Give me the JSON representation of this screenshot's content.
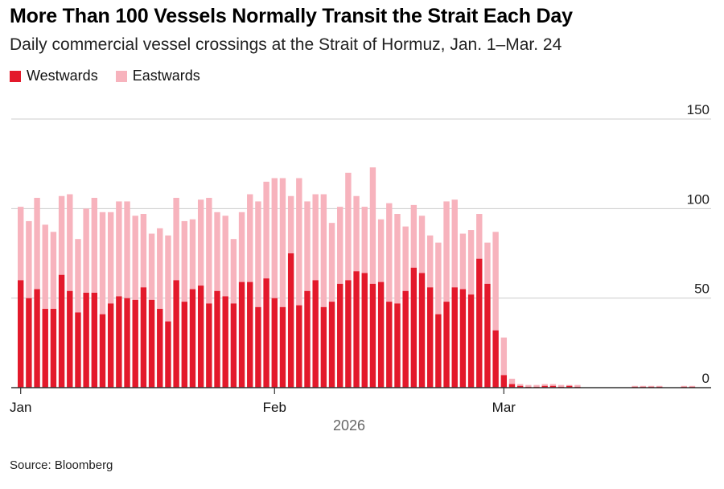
{
  "title": "More Than 100 Vessels Normally Transit the Strait Each Day",
  "subtitle": "Daily commercial vessel crossings at the Strait of Hormuz, Jan. 1–Mar. 24",
  "source": "Source: Bloomberg",
  "colors": {
    "westwards": "#e3192b",
    "eastwards": "#f7b3bd",
    "grid": "#cccccc",
    "axis": "#333333"
  },
  "chart_data": {
    "type": "bar",
    "stacked": true,
    "title": "More Than 100 Vessels Normally Transit the Strait Each Day",
    "subtitle": "Daily commercial vessel crossings at the Strait of Hormuz, Jan. 1–Mar. 24",
    "xlabel": "2026",
    "ylabel": "",
    "ylim": [
      0,
      150
    ],
    "yticks": [
      0,
      50,
      100,
      150
    ],
    "ytick_labels": [
      "0",
      "50",
      "100",
      "150"
    ],
    "y_axis_position": "right",
    "grid": true,
    "legend_position": "top-left",
    "x_ticks": [
      {
        "label": "Jan",
        "day_index": 0
      },
      {
        "label": "Feb",
        "day_index": 31
      },
      {
        "label": "Mar",
        "day_index": 59
      }
    ],
    "series": [
      {
        "name": "Westwards",
        "values": [
          60,
          50,
          55,
          44,
          44,
          63,
          54,
          42,
          53,
          53,
          41,
          47,
          51,
          50,
          49,
          56,
          49,
          44,
          37,
          60,
          48,
          55,
          57,
          47,
          54,
          51,
          47,
          59,
          59,
          45,
          61,
          50,
          45,
          75,
          46,
          54,
          60,
          45,
          48,
          58,
          60,
          65,
          64,
          58,
          59,
          48,
          47,
          54,
          67,
          64,
          56,
          41,
          48,
          56,
          55,
          52,
          72,
          58,
          32,
          7,
          2,
          1,
          0.5,
          0.5,
          1,
          1,
          0.5,
          1,
          0.5,
          0,
          0,
          0,
          0,
          0,
          0,
          0.5,
          0.5,
          0.5,
          0.5,
          0,
          0,
          0.5,
          0.5
        ]
      },
      {
        "name": "Eastwards",
        "values": [
          41,
          43,
          51,
          47,
          43,
          44,
          54,
          41,
          47,
          53,
          57,
          51,
          53,
          54,
          47,
          41,
          37,
          45,
          48,
          46,
          45,
          39,
          48,
          59,
          44,
          45,
          36,
          39,
          49,
          59,
          54,
          67,
          72,
          32,
          71,
          50,
          48,
          63,
          44,
          43,
          60,
          42,
          37,
          65,
          35,
          55,
          50,
          36,
          35,
          32,
          29,
          40,
          56,
          49,
          31,
          36,
          25,
          23,
          55,
          21,
          3,
          1,
          1,
          1,
          1,
          1,
          1,
          0.5,
          1,
          0,
          0,
          0,
          0,
          0,
          0,
          0.5,
          0.5,
          0.5,
          0.5,
          0,
          0,
          0.5,
          0.5
        ]
      }
    ]
  }
}
